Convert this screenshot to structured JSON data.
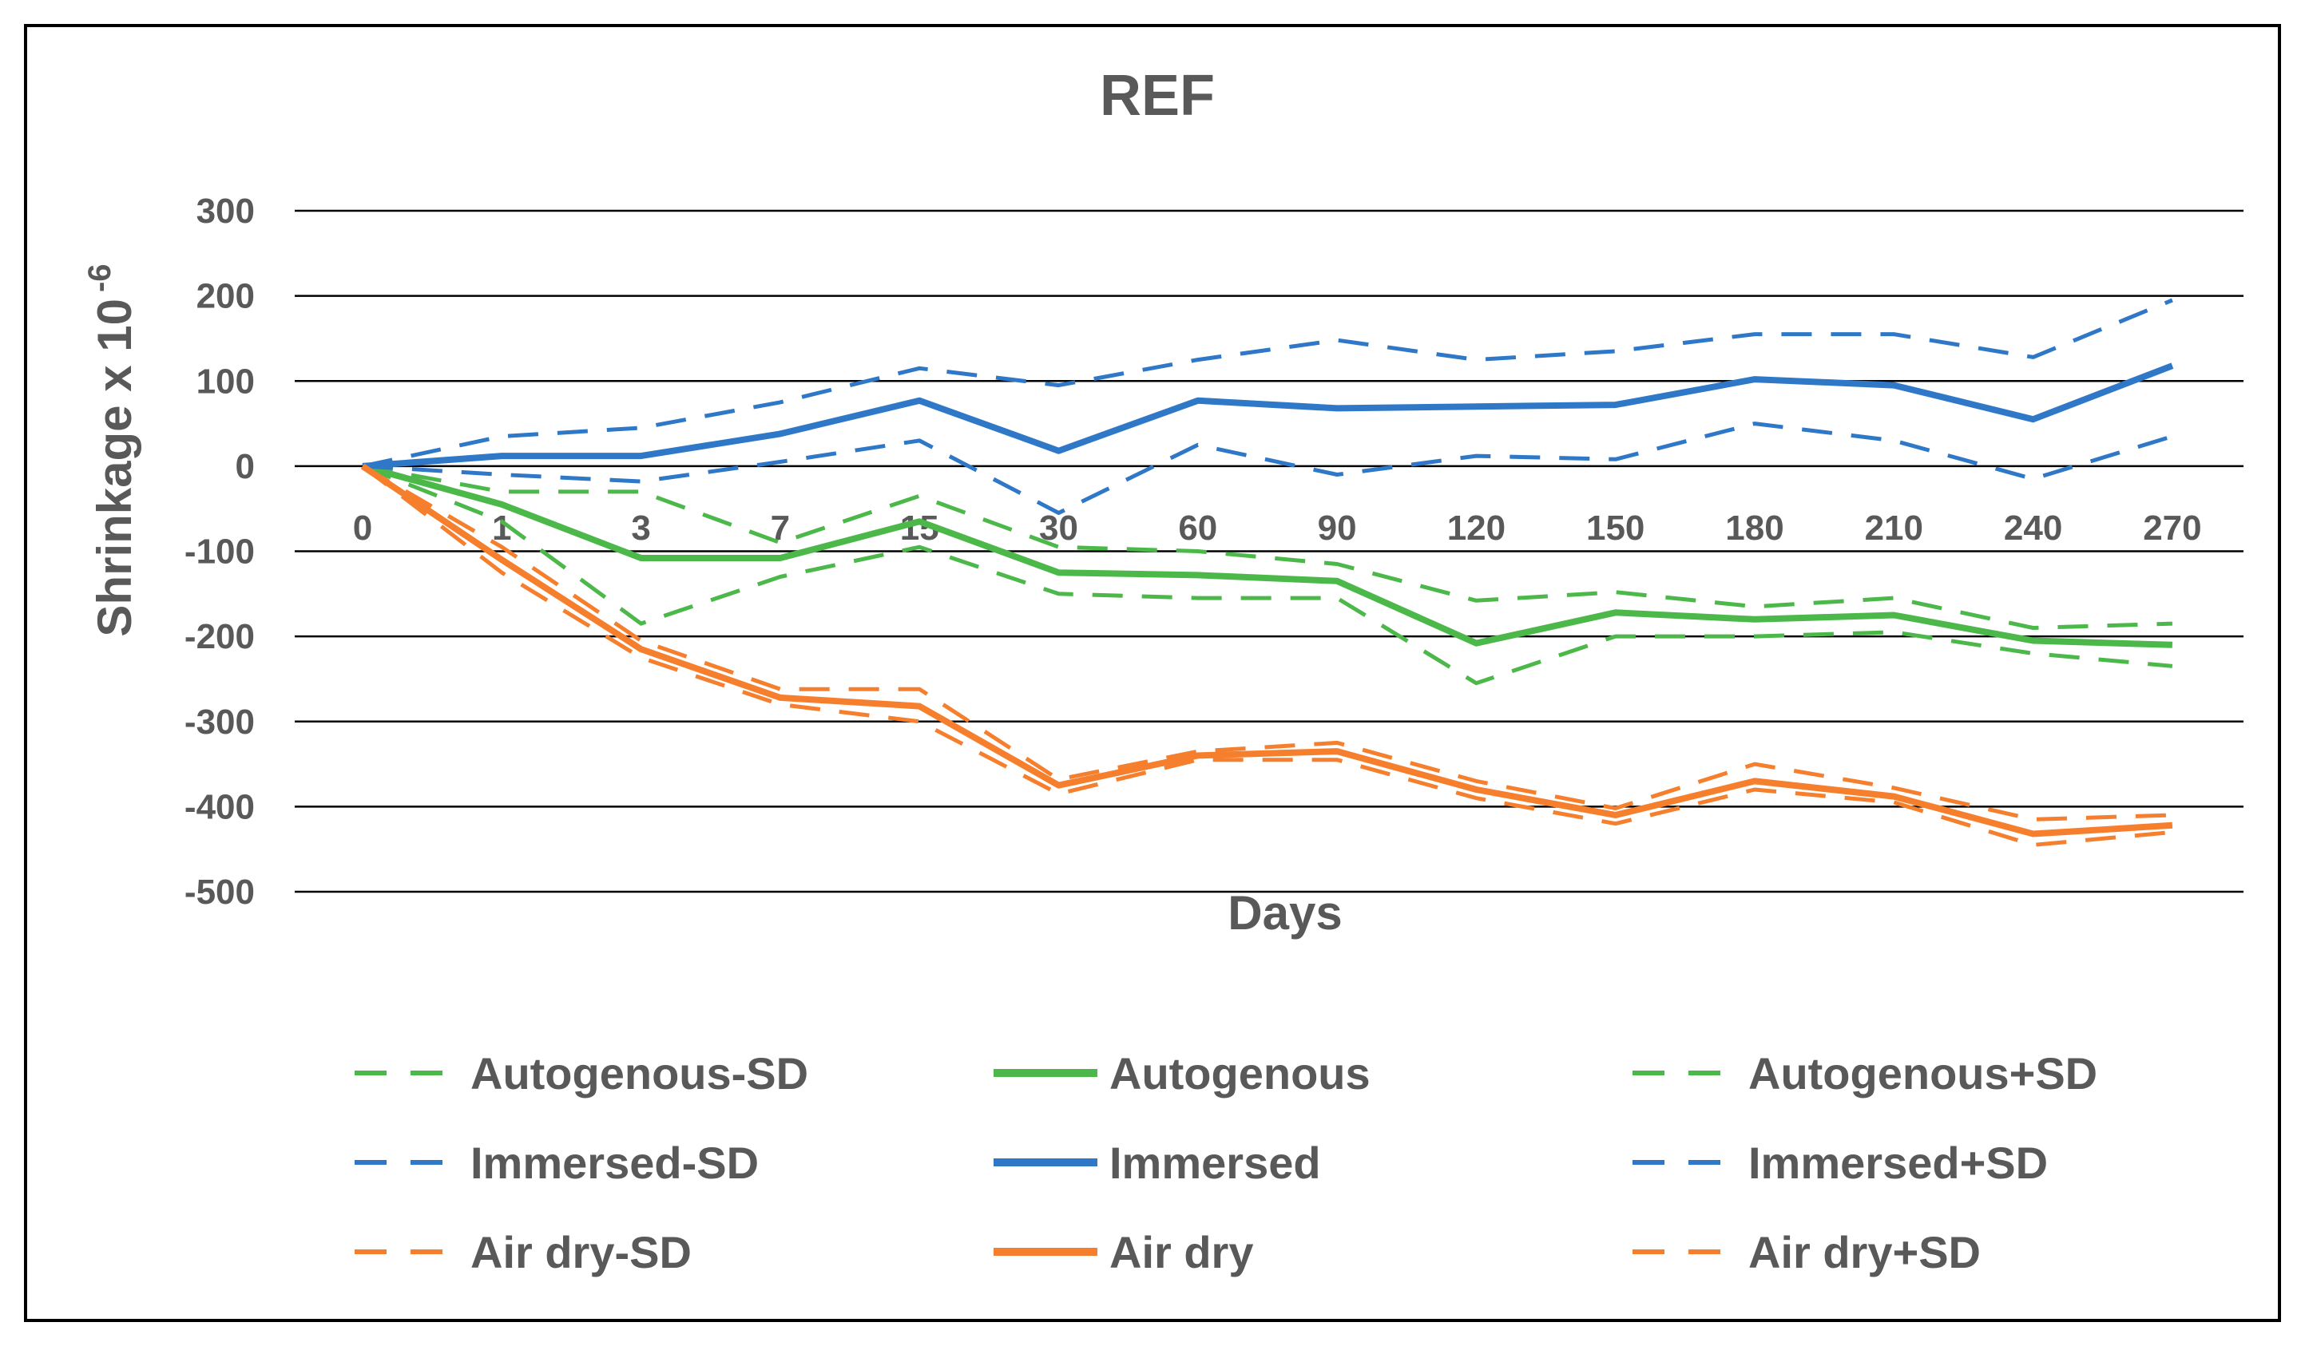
{
  "chart_data": {
    "type": "line",
    "title": "REF",
    "xlabel": "Days",
    "ylabel": "Shrinkage x 10",
    "ylabel_exponent": "-6",
    "ylim": [
      -500,
      300
    ],
    "yticks": [
      300,
      200,
      100,
      0,
      -100,
      -200,
      -300,
      -400,
      -500
    ],
    "grid": true,
    "legend_position": "bottom",
    "categories": [
      "0",
      "1",
      "3",
      "7",
      "15",
      "30",
      "60",
      "90",
      "120",
      "150",
      "180",
      "210",
      "240",
      "270"
    ],
    "colors": {
      "green": "#4cb84a",
      "blue": "#2f78c8",
      "orange": "#f57f2d",
      "grid": "#000000",
      "text": "#595959"
    },
    "series": [
      {
        "name": "Autogenous-SD",
        "color": "#4cb84a",
        "dash": true,
        "values": [
          0,
          -65,
          -185,
          -130,
          -95,
          -150,
          -155,
          -155,
          -255,
          -200,
          -200,
          -195,
          -220,
          -235
        ]
      },
      {
        "name": "Autogenous",
        "color": "#4cb84a",
        "dash": false,
        "values": [
          0,
          -45,
          -108,
          -108,
          -65,
          -125,
          -128,
          -135,
          -208,
          -172,
          -180,
          -175,
          -205,
          -210
        ]
      },
      {
        "name": "Autogenous+SD",
        "color": "#4cb84a",
        "dash": true,
        "values": [
          0,
          -30,
          -30,
          -90,
          -35,
          -95,
          -100,
          -115,
          -158,
          -148,
          -165,
          -155,
          -190,
          -185
        ]
      },
      {
        "name": "Immersed-SD",
        "color": "#2f78c8",
        "dash": true,
        "values": [
          0,
          -10,
          -18,
          5,
          30,
          -55,
          25,
          -10,
          12,
          8,
          50,
          30,
          -15,
          35
        ]
      },
      {
        "name": "Immersed",
        "color": "#2f78c8",
        "dash": false,
        "values": [
          0,
          12,
          12,
          38,
          77,
          18,
          77,
          68,
          70,
          72,
          102,
          95,
          55,
          118
        ]
      },
      {
        "name": "Immersed+SD",
        "color": "#2f78c8",
        "dash": true,
        "values": [
          0,
          35,
          45,
          75,
          115,
          95,
          125,
          148,
          125,
          135,
          155,
          155,
          128,
          195
        ]
      },
      {
        "name": "Air dry-SD",
        "color": "#f57f2d",
        "dash": true,
        "values": [
          0,
          -125,
          -225,
          -280,
          -300,
          -385,
          -345,
          -345,
          -390,
          -420,
          -380,
          -395,
          -445,
          -430
        ]
      },
      {
        "name": "Air dry",
        "color": "#f57f2d",
        "dash": false,
        "values": [
          0,
          -110,
          -215,
          -272,
          -282,
          -375,
          -340,
          -335,
          -380,
          -410,
          -370,
          -388,
          -432,
          -422
        ]
      },
      {
        "name": "Air dry+SD",
        "color": "#f57f2d",
        "dash": true,
        "values": [
          0,
          -95,
          -205,
          -262,
          -262,
          -368,
          -335,
          -325,
          -370,
          -402,
          -350,
          -378,
          -415,
          -410
        ]
      }
    ]
  }
}
